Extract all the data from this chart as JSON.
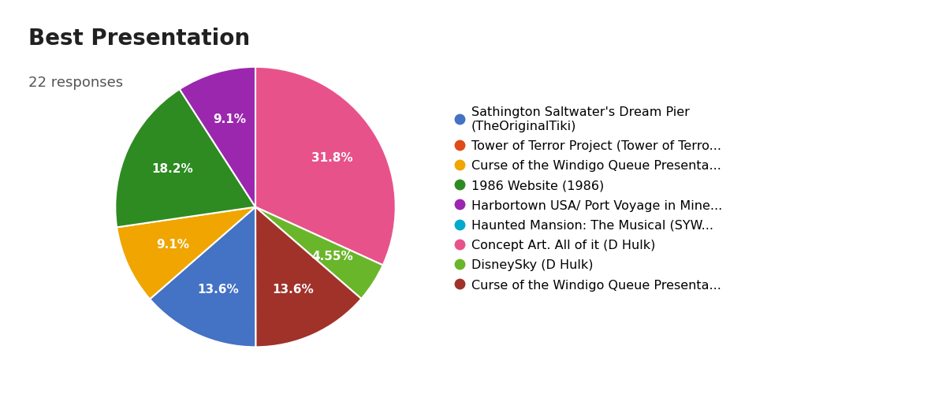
{
  "title": "Best Presentation",
  "subtitle": "22 responses",
  "slices": [
    {
      "label": "Concept Art. All of it (D Hulk)",
      "pct": 31.8,
      "color": "#E8528A"
    },
    {
      "label": "DisneySky (D Hulk)",
      "pct": 4.55,
      "color": "#6AB62A"
    },
    {
      "label": "Curse of the Windigo Queue Presenta...",
      "pct": 13.6,
      "color": "#A0322A"
    },
    {
      "label": "Sathington Saltwater's Dream Pier\n(TheOriginalTiki)",
      "pct": 13.6,
      "color": "#4472C4"
    },
    {
      "label": "Curse of the Windigo Queue Presenta...",
      "pct": 9.1,
      "color": "#F0A500"
    },
    {
      "label": "1986 Website (1986)",
      "pct": 18.2,
      "color": "#2E8B22"
    },
    {
      "label": "Harbortown USA/ Port Voyage in Mine...",
      "pct": 9.1,
      "color": "#9B27AF"
    }
  ],
  "legend_entries": [
    {
      "label": "Sathington Saltwater's Dream Pier\n(TheOriginalTiki)",
      "color": "#4472C4"
    },
    {
      "label": "Tower of Terror Project (Tower of Terro...",
      "color": "#E04B1A"
    },
    {
      "label": "Curse of the Windigo Queue Presenta...",
      "color": "#F0A500"
    },
    {
      "label": "1986 Website (1986)",
      "color": "#2E8B22"
    },
    {
      "label": "Harbortown USA/ Port Voyage in Mine...",
      "color": "#9B27AF"
    },
    {
      "label": "Haunted Mansion: The Musical (SYW...",
      "color": "#00AACC"
    },
    {
      "label": "Concept Art. All of it (D Hulk)",
      "color": "#E8528A"
    },
    {
      "label": "DisneySky (D Hulk)",
      "color": "#6AB62A"
    },
    {
      "label": "Curse of the Windigo Queue Presenta...",
      "color": "#A0322A"
    }
  ],
  "title_fontsize": 20,
  "subtitle_fontsize": 13,
  "label_fontsize": 11,
  "background_color": "#ffffff",
  "text_color": "#212121",
  "legend_fontsize": 11.5
}
